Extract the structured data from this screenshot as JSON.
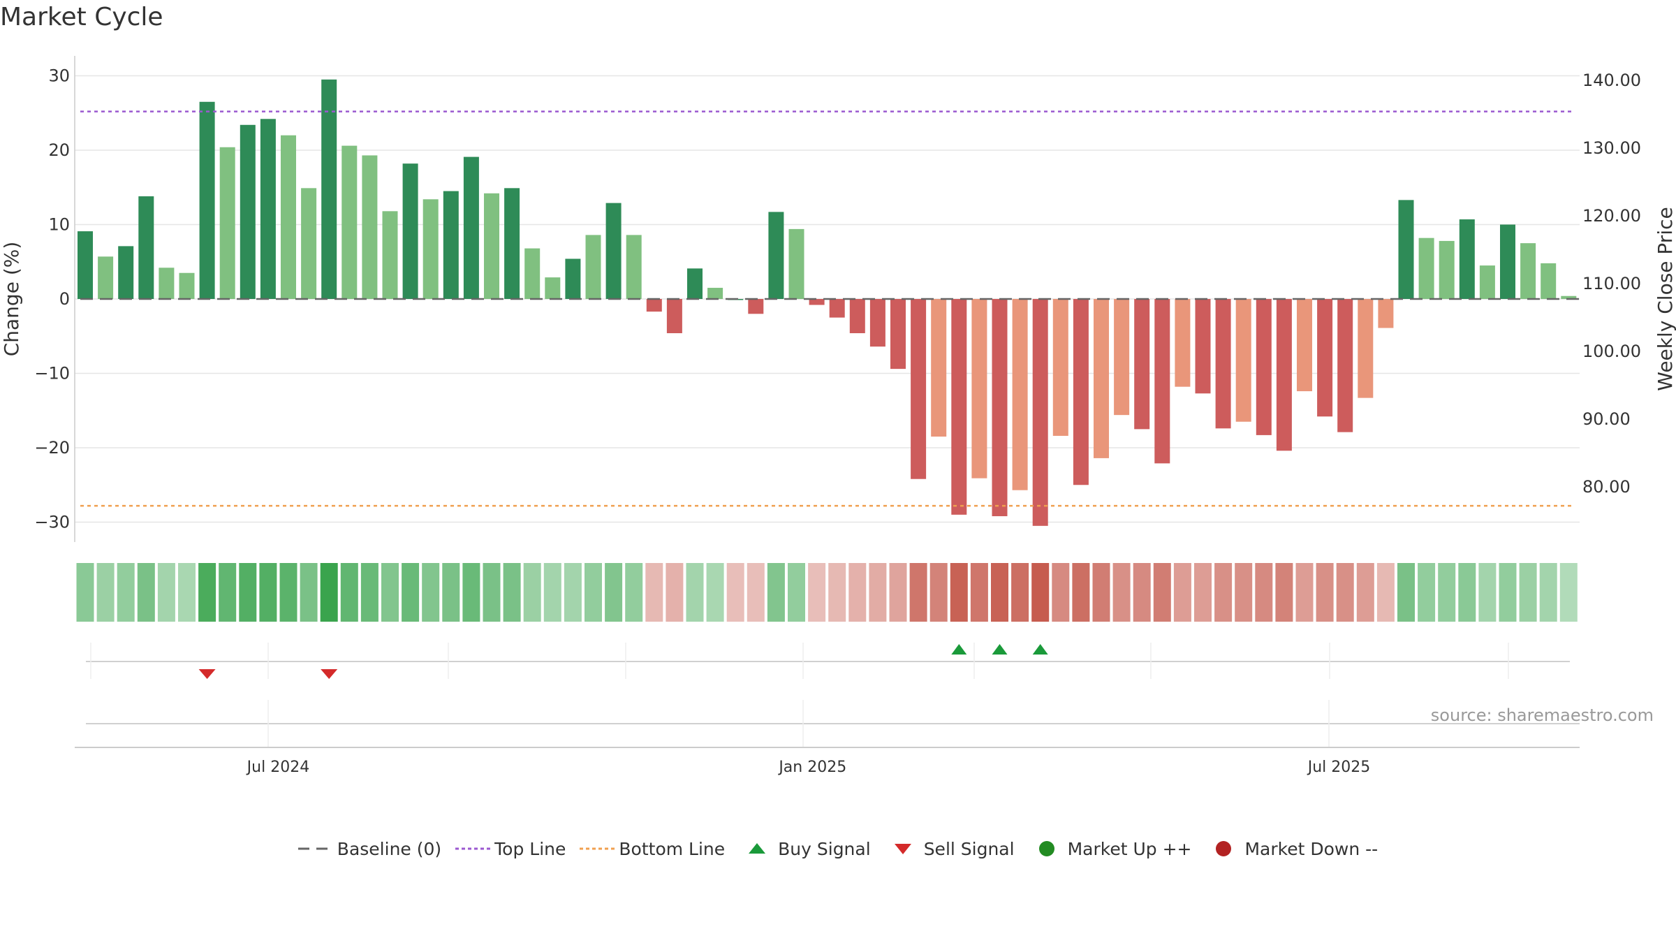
{
  "title": "Market Cycle",
  "source_note": "source: sharemaestro.com",
  "colors": {
    "up_strong": "#2e8b57",
    "up_light": "#80c080",
    "down_strong": "#cd5c5c",
    "down_light": "#e9967a",
    "top_line": "#9b59d0",
    "bottom_line": "#f0a050",
    "baseline": "#666666",
    "buy": "#1a9a3a",
    "sell": "#d42a2a",
    "market_up": "#228b22",
    "market_down": "#b22222"
  },
  "legend": [
    {
      "key": "baseline",
      "label": "Baseline (0)",
      "symbol": "dash"
    },
    {
      "key": "top_line",
      "label": "Top Line",
      "symbol": "dotted"
    },
    {
      "key": "bottom_line",
      "label": "Bottom Line",
      "symbol": "dotted"
    },
    {
      "key": "buy",
      "label": "Buy Signal",
      "symbol": "triangle-up"
    },
    {
      "key": "sell",
      "label": "Sell Signal",
      "symbol": "triangle-down"
    },
    {
      "key": "market_up",
      "label": "Market Up ++",
      "symbol": "circle"
    },
    {
      "key": "market_down",
      "label": "Market Down --",
      "symbol": "circle"
    }
  ],
  "chart_data": {
    "type": "bar",
    "ylabel": "Change (%)",
    "y2label": "Weekly Close Price",
    "ylim": [
      -33,
      33
    ],
    "y_ticks": [
      30,
      20,
      10,
      0,
      -10,
      -20,
      -30
    ],
    "y_tick_labels": [
      "30",
      "20",
      "10",
      "0",
      "−10",
      "−20",
      "−30"
    ],
    "y2_ticks": [
      140,
      130,
      120,
      110,
      100,
      90,
      80
    ],
    "y2_tick_labels": [
      "140.00",
      "130.00",
      "120.00",
      "110.00",
      "100.00",
      "90.00",
      "80.00"
    ],
    "top_line": 25.2,
    "bottom_line": -27.8,
    "baseline": 0,
    "x_ticks": [
      {
        "label": "Jul 2024",
        "index": 9.5
      },
      {
        "label": "Jan 2025",
        "index": 35.8
      },
      {
        "label": "Jul 2025",
        "index": 61.7
      }
    ],
    "values": [
      9.1,
      5.7,
      7.1,
      13.8,
      4.2,
      3.5,
      26.5,
      20.4,
      23.4,
      24.2,
      22,
      14.9,
      29.5,
      20.6,
      19.3,
      11.8,
      18.2,
      13.4,
      14.5,
      19.1,
      14.2,
      14.9,
      6.8,
      2.9,
      5.4,
      8.6,
      12.9,
      8.6,
      -1.7,
      -4.6,
      4.1,
      1.5,
      0,
      -2,
      11.7,
      9.4,
      -0.8,
      -2.5,
      -4.6,
      -6.4,
      -9.4,
      -24.2,
      -18.5,
      -29,
      -24.1,
      -29.2,
      -25.7,
      -30.5,
      -18.4,
      -25,
      -21.4,
      -15.6,
      -17.5,
      -22.1,
      -11.8,
      -12.7,
      -17.4,
      -16.5,
      -18.3,
      -20.4,
      -12.4,
      -15.8,
      -17.9,
      -13.3,
      -3.9,
      13.3,
      8.2,
      7.8,
      10.7,
      4.5,
      10,
      7.5,
      4.8,
      0.4
    ],
    "strong": [
      1,
      0,
      1,
      1,
      0,
      0,
      1,
      0,
      1,
      1,
      0,
      0,
      1,
      0,
      0,
      0,
      1,
      0,
      1,
      1,
      0,
      1,
      0,
      0,
      1,
      0,
      1,
      0,
      1,
      1,
      1,
      0,
      1,
      1,
      1,
      0,
      1,
      1,
      1,
      1,
      1,
      1,
      0,
      1,
      0,
      1,
      0,
      1,
      0,
      1,
      0,
      0,
      1,
      1,
      0,
      1,
      1,
      0,
      1,
      1,
      0,
      1,
      1,
      0,
      0,
      1,
      0,
      0,
      1,
      0,
      1,
      0,
      0,
      0
    ],
    "heat_strip": [
      0.45,
      0.35,
      0.4,
      0.55,
      0.3,
      0.25,
      0.85,
      0.7,
      0.8,
      0.8,
      0.75,
      0.55,
      0.95,
      0.7,
      0.65,
      0.5,
      0.65,
      0.5,
      0.55,
      0.65,
      0.55,
      0.55,
      0.35,
      0.3,
      0.3,
      0.4,
      0.5,
      0.4,
      -0.25,
      -0.3,
      0.3,
      0.25,
      -0.2,
      -0.2,
      0.5,
      0.4,
      -0.2,
      -0.25,
      -0.3,
      -0.35,
      -0.4,
      -0.75,
      -0.65,
      -0.9,
      -0.75,
      -0.9,
      -0.8,
      -0.95,
      -0.6,
      -0.8,
      -0.7,
      -0.55,
      -0.6,
      -0.7,
      -0.45,
      -0.45,
      -0.55,
      -0.55,
      -0.6,
      -0.65,
      -0.45,
      -0.55,
      -0.55,
      -0.45,
      -0.25,
      0.55,
      0.4,
      0.4,
      0.45,
      0.3,
      0.4,
      0.35,
      0.3,
      0.2
    ],
    "buy_signals": [
      43,
      45,
      47
    ],
    "sell_signals": [
      6,
      12
    ]
  }
}
